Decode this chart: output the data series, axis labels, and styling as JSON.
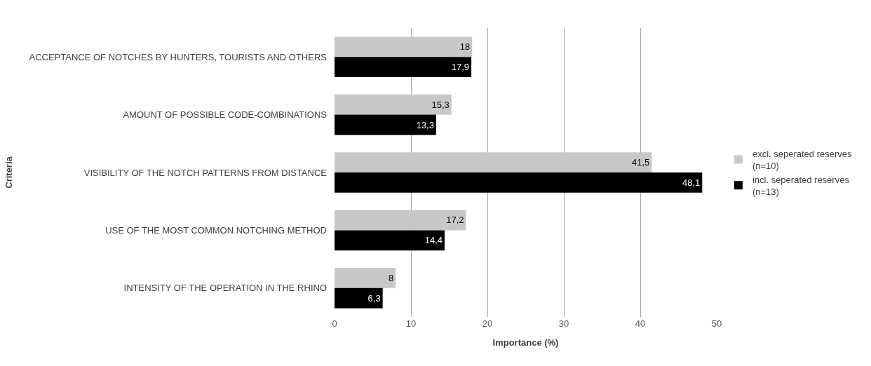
{
  "chart_data": {
    "type": "bar",
    "orientation": "horizontal",
    "xlabel": "Importance (%)",
    "ylabel": "Criteria",
    "categories": [
      "ACCEPTANCE OF NOTCHES BY HUNTERS, TOURISTS AND OTHERS",
      "AMOUNT OF POSSIBLE CODE-COMBINATIONS",
      "VISIBILITY OF THE NOTCH PATTERNS FROM DISTANCE",
      "USE OF THE MOST COMMON NOTCHING METHOD",
      "INTENSITY OF THE OPERATION IN THE RHINO"
    ],
    "series": [
      {
        "name": "excl. seperated reserves (n=10)",
        "color": "#c8c8c8",
        "values": [
          18,
          15.3,
          41.5,
          17.2,
          8
        ],
        "value_labels": [
          "18",
          "15,3",
          "41,5",
          "17,2",
          "8"
        ]
      },
      {
        "name": "incl. seperated reserves (n=13)",
        "color": "#000000",
        "values": [
          17.9,
          13.3,
          48.1,
          14.4,
          6.3
        ],
        "value_labels": [
          "17,9",
          "13,3",
          "48,1",
          "14,4",
          "6,3"
        ]
      }
    ],
    "xlim": [
      0,
      50
    ],
    "xticks": [
      0,
      10,
      20,
      30,
      40,
      50
    ],
    "grid": "x",
    "legend": "right"
  }
}
